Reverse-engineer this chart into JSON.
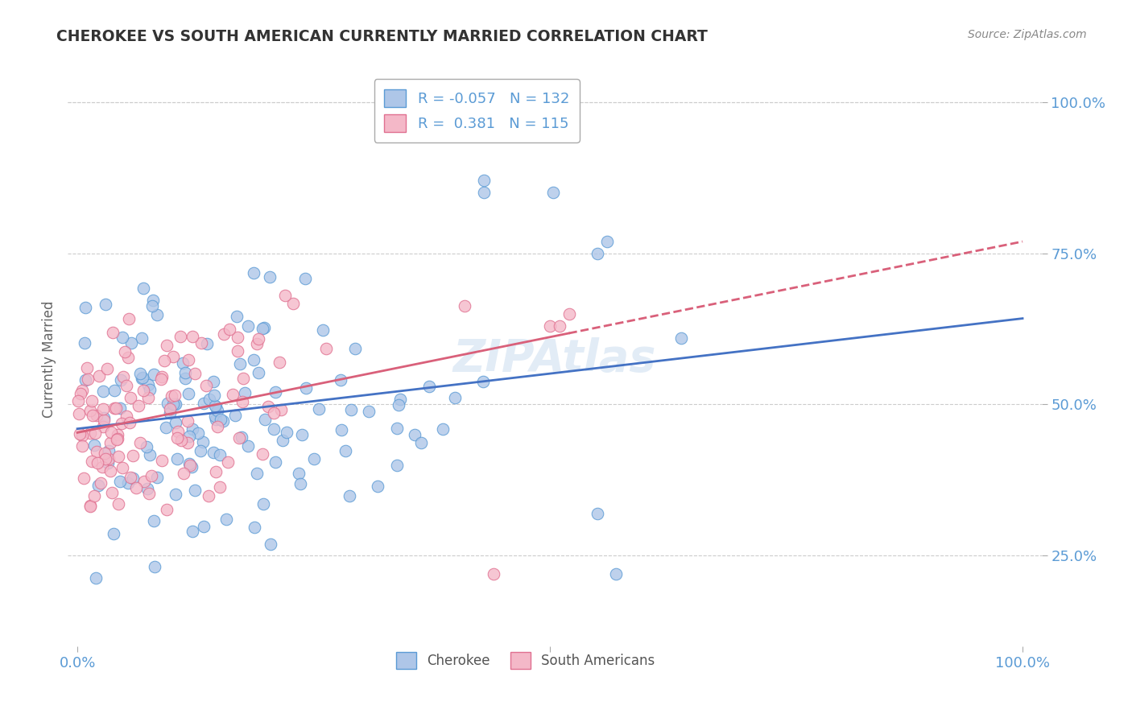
{
  "title": "CHEROKEE VS SOUTH AMERICAN CURRENTLY MARRIED CORRELATION CHART",
  "source": "Source: ZipAtlas.com",
  "ylabel": "Currently Married",
  "cherokee_R": -0.057,
  "cherokee_N": 132,
  "southam_R": 0.381,
  "southam_N": 115,
  "cherokee_color": "#aec6e8",
  "southam_color": "#f4b8c8",
  "cherokee_edge_color": "#5b9bd5",
  "southam_edge_color": "#e07090",
  "trend_color_blue": "#4472c4",
  "trend_color_pink": "#d9607a",
  "background_color": "#ffffff",
  "grid_color": "#cccccc",
  "axis_label_color": "#5b9bd5",
  "title_color": "#333333",
  "watermark_color": "#b8d0ea",
  "yticks": [
    0.25,
    0.5,
    0.75,
    1.0
  ],
  "xlim": [
    -0.01,
    1.02
  ],
  "ylim": [
    0.1,
    1.05
  ]
}
